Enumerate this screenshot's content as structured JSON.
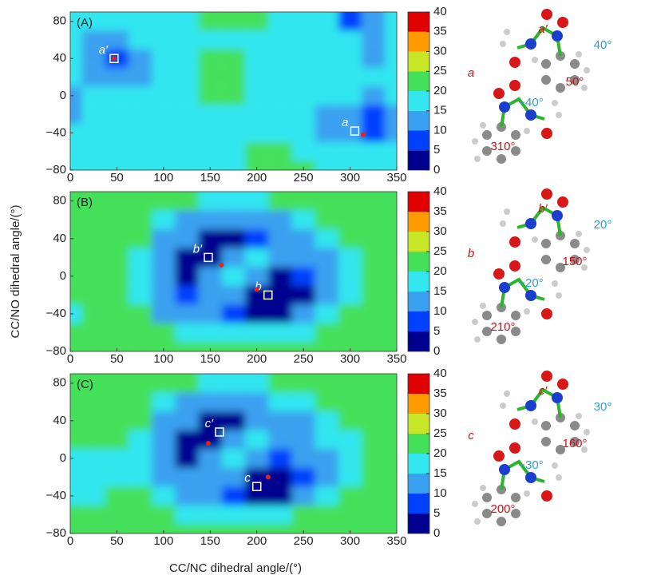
{
  "x_label": "CC/NC dihedral angle/(°)",
  "y_label": "CC/NO dihedral angle/(°)",
  "chart_data": [
    {
      "type": "contour",
      "panel_label": "(A)",
      "xlim": [
        0,
        350
      ],
      "ylim": [
        -80,
        90
      ],
      "xticks": [
        0,
        50,
        100,
        150,
        200,
        250,
        300,
        350
      ],
      "yticks": [
        {
          "value": -80,
          "label": "−80"
        },
        {
          "value": -40,
          "label": "−40"
        },
        0,
        40,
        80
      ],
      "clim": [
        0,
        40
      ],
      "cticks": [
        0,
        5,
        10,
        15,
        20,
        25,
        30,
        35,
        40
      ],
      "colormap": [
        "#00008f",
        "#0040ff",
        "#3aa0f0",
        "#33e6f0",
        "#44e05a",
        "#c8e628",
        "#ff9a00",
        "#e00000"
      ],
      "x": [
        0,
        25,
        50,
        75,
        100,
        125,
        150,
        175,
        200,
        225,
        250,
        275,
        300,
        325,
        350
      ],
      "y": [
        -80,
        -60,
        -40,
        -20,
        0,
        20,
        40,
        60,
        80
      ],
      "z": [
        [
          17,
          17,
          17,
          17,
          17,
          17,
          17,
          17,
          21,
          21,
          21,
          17,
          17,
          17,
          17
        ],
        [
          17,
          17,
          17,
          17,
          17,
          17,
          17,
          17,
          21,
          21,
          17,
          17,
          17,
          17,
          17
        ],
        [
          17,
          17,
          17,
          17,
          17,
          17,
          17,
          17,
          17,
          17,
          17,
          12,
          12,
          6,
          12
        ],
        [
          12,
          17,
          17,
          17,
          17,
          17,
          17,
          17,
          17,
          17,
          17,
          12,
          12,
          9,
          12
        ],
        [
          12,
          17,
          17,
          17,
          17,
          17,
          21,
          21,
          17,
          17,
          17,
          17,
          17,
          12,
          17
        ],
        [
          17,
          12,
          12,
          12,
          17,
          17,
          21,
          21,
          17,
          17,
          17,
          17,
          17,
          17,
          17
        ],
        [
          17,
          12,
          6,
          12,
          17,
          17,
          21,
          21,
          17,
          17,
          17,
          17,
          17,
          12,
          17
        ],
        [
          17,
          12,
          12,
          17,
          17,
          17,
          17,
          17,
          17,
          17,
          17,
          17,
          17,
          12,
          17
        ],
        [
          17,
          17,
          17,
          17,
          17,
          17,
          21,
          21,
          21,
          17,
          17,
          17,
          9,
          12,
          17
        ]
      ],
      "markers": [
        {
          "kind": "square",
          "label": "a′",
          "x": 47,
          "y": 40
        },
        {
          "kind": "dot",
          "x": 47,
          "y": 40
        },
        {
          "kind": "square",
          "label": "a",
          "x": 305,
          "y": -38
        },
        {
          "kind": "dot",
          "x": 314,
          "y": -42
        }
      ],
      "annotations": [
        "a′",
        "40°",
        "50°",
        "a",
        "−40°",
        "310°"
      ]
    },
    {
      "type": "contour",
      "panel_label": "(B)",
      "xlim": [
        0,
        350
      ],
      "ylim": [
        -80,
        90
      ],
      "xticks": [
        0,
        50,
        100,
        150,
        200,
        250,
        300,
        350
      ],
      "yticks": [
        {
          "value": -80,
          "label": "−80"
        },
        {
          "value": -40,
          "label": "−40"
        },
        0,
        40,
        80
      ],
      "clim": [
        0,
        40
      ],
      "cticks": [
        0,
        5,
        10,
        15,
        20,
        25,
        30,
        35,
        40
      ],
      "colormap": [
        "#00008f",
        "#0040ff",
        "#3aa0f0",
        "#33e6f0",
        "#44e05a",
        "#c8e628",
        "#ff9a00",
        "#e00000"
      ],
      "x": [
        0,
        25,
        50,
        75,
        100,
        125,
        150,
        175,
        200,
        225,
        250,
        275,
        300,
        325,
        350
      ],
      "y": [
        -80,
        -60,
        -40,
        -20,
        0,
        20,
        40,
        60,
        80
      ],
      "z": [
        [
          21,
          21,
          21,
          21,
          21,
          21,
          21,
          21,
          21,
          21,
          21,
          21,
          21,
          21,
          21
        ],
        [
          21,
          21,
          21,
          21,
          21,
          17,
          17,
          17,
          17,
          17,
          17,
          21,
          21,
          21,
          21
        ],
        [
          17,
          21,
          21,
          21,
          12,
          12,
          12,
          9,
          4,
          4,
          12,
          17,
          21,
          21,
          21
        ],
        [
          21,
          21,
          21,
          17,
          12,
          9,
          12,
          12,
          4,
          4,
          4,
          12,
          17,
          21,
          21
        ],
        [
          21,
          21,
          21,
          17,
          12,
          4,
          12,
          17,
          12,
          4,
          9,
          12,
          17,
          21,
          21
        ],
        [
          21,
          21,
          21,
          17,
          12,
          4,
          4,
          12,
          17,
          12,
          12,
          12,
          17,
          21,
          21
        ],
        [
          21,
          21,
          21,
          21,
          12,
          12,
          4,
          4,
          9,
          12,
          12,
          17,
          21,
          21,
          21
        ],
        [
          21,
          21,
          21,
          21,
          17,
          12,
          12,
          12,
          12,
          12,
          17,
          21,
          21,
          21,
          21
        ],
        [
          21,
          21,
          21,
          21,
          21,
          21,
          17,
          17,
          17,
          21,
          21,
          21,
          21,
          21,
          21
        ]
      ],
      "markers": [
        {
          "kind": "square",
          "label": "b′",
          "x": 148,
          "y": 20
        },
        {
          "kind": "dot",
          "x": 162,
          "y": 12
        },
        {
          "kind": "square",
          "label": "b",
          "x": 212,
          "y": -20
        },
        {
          "kind": "dot",
          "x": 200,
          "y": -14
        }
      ],
      "annotations": [
        "b′",
        "20°",
        "150°",
        "b",
        "−20°",
        "210°"
      ]
    },
    {
      "type": "contour",
      "panel_label": "(C)",
      "xlim": [
        0,
        350
      ],
      "ylim": [
        -80,
        90
      ],
      "xticks": [
        0,
        50,
        100,
        150,
        200,
        250,
        300,
        350
      ],
      "yticks": [
        {
          "value": -80,
          "label": "−80"
        },
        {
          "value": -40,
          "label": "−40"
        },
        0,
        40,
        80
      ],
      "clim": [
        0,
        40
      ],
      "cticks": [
        0,
        5,
        10,
        15,
        20,
        25,
        30,
        35,
        40
      ],
      "colormap": [
        "#00008f",
        "#0040ff",
        "#3aa0f0",
        "#33e6f0",
        "#44e05a",
        "#c8e628",
        "#ff9a00",
        "#e00000"
      ],
      "x": [
        0,
        25,
        50,
        75,
        100,
        125,
        150,
        175,
        200,
        225,
        250,
        275,
        300,
        325,
        350
      ],
      "y": [
        -80,
        -60,
        -40,
        -20,
        0,
        20,
        40,
        60,
        80
      ],
      "z": [
        [
          21,
          21,
          21,
          21,
          21,
          21,
          21,
          21,
          21,
          21,
          21,
          21,
          21,
          21,
          21
        ],
        [
          21,
          21,
          21,
          21,
          21,
          17,
          17,
          17,
          17,
          17,
          21,
          21,
          21,
          21,
          21
        ],
        [
          17,
          17,
          21,
          21,
          17,
          12,
          12,
          9,
          4,
          4,
          12,
          17,
          21,
          21,
          21
        ],
        [
          17,
          17,
          17,
          17,
          12,
          12,
          12,
          12,
          4,
          4,
          9,
          12,
          17,
          21,
          21
        ],
        [
          17,
          17,
          17,
          17,
          12,
          4,
          12,
          17,
          12,
          9,
          12,
          12,
          17,
          21,
          21
        ],
        [
          21,
          21,
          21,
          17,
          12,
          4,
          4,
          12,
          17,
          12,
          12,
          17,
          17,
          21,
          21
        ],
        [
          21,
          21,
          21,
          21,
          12,
          12,
          4,
          4,
          12,
          12,
          12,
          17,
          21,
          21,
          21
        ],
        [
          21,
          21,
          21,
          21,
          17,
          12,
          12,
          12,
          12,
          17,
          17,
          21,
          21,
          21,
          21
        ],
        [
          21,
          21,
          21,
          21,
          21,
          21,
          17,
          17,
          17,
          21,
          21,
          21,
          21,
          21,
          21
        ]
      ],
      "markers": [
        {
          "kind": "square",
          "label": "c′",
          "x": 160,
          "y": 28
        },
        {
          "kind": "dot",
          "x": 148,
          "y": 16
        },
        {
          "kind": "square",
          "label": "c",
          "x": 200,
          "y": -30
        },
        {
          "kind": "dot",
          "x": 212,
          "y": -20
        }
      ],
      "annotations": [
        "c′",
        "30°",
        "160°",
        "c",
        "−30°",
        "200°"
      ]
    }
  ]
}
